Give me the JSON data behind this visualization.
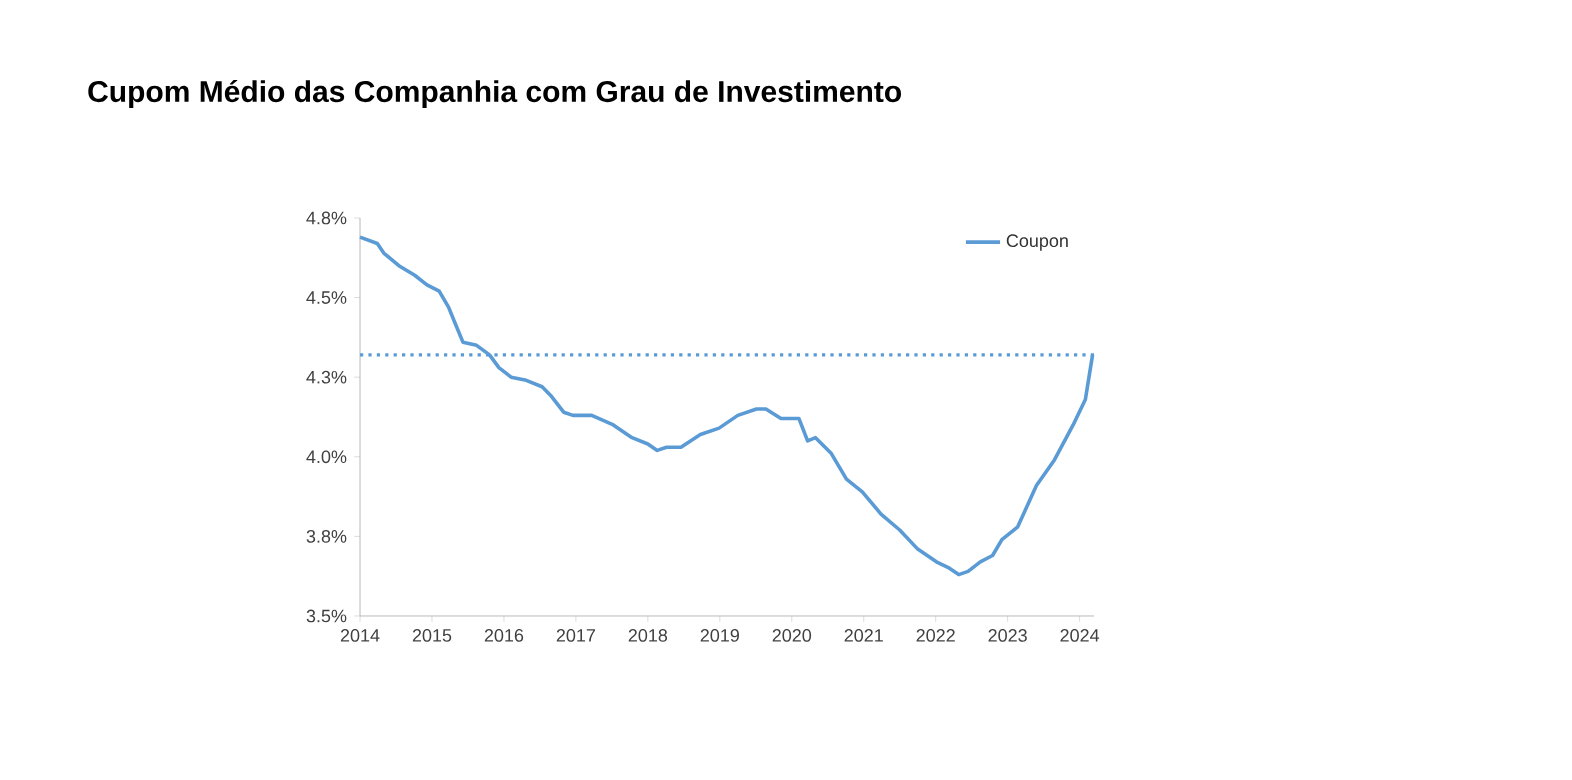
{
  "chart_data": {
    "type": "line",
    "title": "Cupom Médio das Companhia com Grau de Investimento",
    "x": [
      2014.0,
      2014.24,
      2014.33,
      2014.54,
      2014.76,
      2014.93,
      2015.1,
      2015.23,
      2015.32,
      2015.43,
      2015.62,
      2015.8,
      2015.93,
      2016.1,
      2016.31,
      2016.53,
      2016.66,
      2016.83,
      2016.96,
      2017.22,
      2017.52,
      2017.78,
      2018.0,
      2018.13,
      2018.26,
      2018.46,
      2018.73,
      2018.99,
      2019.25,
      2019.51,
      2019.64,
      2019.85,
      2020.1,
      2020.22,
      2020.33,
      2020.55,
      2020.76,
      2020.98,
      2021.24,
      2021.5,
      2021.75,
      2022.01,
      2022.19,
      2022.32,
      2022.45,
      2022.62,
      2022.79,
      2022.92,
      2023.14,
      2023.4,
      2023.65,
      2023.91,
      2024.08,
      2024.18
    ],
    "series": [
      {
        "name": "Coupon",
        "color": "#5b9bd5",
        "values": [
          4.69,
          4.67,
          4.64,
          4.6,
          4.57,
          4.54,
          4.52,
          4.47,
          4.42,
          4.36,
          4.35,
          4.32,
          4.28,
          4.25,
          4.24,
          4.22,
          4.19,
          4.14,
          4.13,
          4.13,
          4.1,
          4.06,
          4.04,
          4.02,
          4.03,
          4.03,
          4.07,
          4.09,
          4.13,
          4.15,
          4.15,
          4.12,
          4.12,
          4.05,
          4.06,
          4.01,
          3.93,
          3.89,
          3.82,
          3.77,
          3.71,
          3.67,
          3.65,
          3.63,
          3.64,
          3.67,
          3.69,
          3.74,
          3.78,
          3.91,
          3.99,
          4.1,
          4.18,
          4.32
        ]
      }
    ],
    "xlim": [
      2014,
      2024.2
    ],
    "xticks": [
      2014,
      2015,
      2016,
      2017,
      2018,
      2019,
      2020,
      2021,
      2022,
      2023,
      2024
    ],
    "ylim": [
      3.5,
      4.75
    ],
    "yticks": [
      {
        "value": 3.5,
        "label": "3.5%"
      },
      {
        "value": 3.75,
        "label": "3.8%"
      },
      {
        "value": 4.0,
        "label": "4.0%"
      },
      {
        "value": 4.25,
        "label": "4.3%"
      },
      {
        "value": 4.5,
        "label": "4.5%"
      },
      {
        "value": 4.75,
        "label": "4.8%"
      }
    ],
    "ref_lines": [
      {
        "axis": "y",
        "value": 4.32,
        "color": "#5b9bd5",
        "line_style": "dotted"
      }
    ],
    "legend": "top right",
    "grid": false,
    "marker": "none",
    "line_style": "solid"
  }
}
